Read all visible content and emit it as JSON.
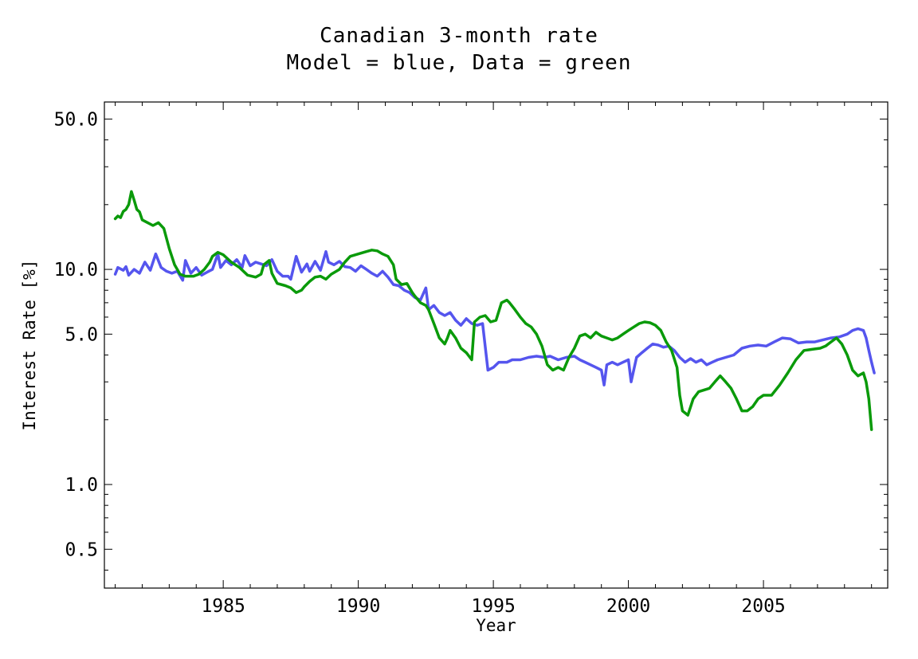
{
  "chart_data": {
    "type": "line",
    "title": "Canadian 3-month rate",
    "subtitle": "Model = blue, Data = green",
    "xlabel": "Year",
    "ylabel": "Interest Rate [%]",
    "xlim": [
      1980.6,
      2009.6
    ],
    "ylim": [
      0.33,
      60
    ],
    "yscale": "log",
    "grid": false,
    "x_ticks": [
      1985,
      1990,
      1995,
      2000,
      2005
    ],
    "x_tick_labels": [
      "1985",
      "1990",
      "1995",
      "2000",
      "2005"
    ],
    "y_ticks": [
      0.5,
      1.0,
      5.0,
      10.0,
      50.0
    ],
    "y_tick_labels": [
      "0.5",
      "1.0",
      "5.0",
      "10.0",
      "50.0"
    ],
    "colors": {
      "model": "#5555ee",
      "data": "#0a9a0a"
    },
    "series": [
      {
        "key": "model",
        "color": "#5555ee",
        "points": [
          [
            1981.0,
            9.5
          ],
          [
            1981.1,
            10.2
          ],
          [
            1981.3,
            9.9
          ],
          [
            1981.4,
            10.3
          ],
          [
            1981.5,
            9.4
          ],
          [
            1981.7,
            10.0
          ],
          [
            1981.9,
            9.6
          ],
          [
            1982.1,
            10.8
          ],
          [
            1982.3,
            9.9
          ],
          [
            1982.5,
            11.8
          ],
          [
            1982.7,
            10.2
          ],
          [
            1982.9,
            9.8
          ],
          [
            1983.1,
            9.6
          ],
          [
            1983.3,
            9.8
          ],
          [
            1983.5,
            8.9
          ],
          [
            1983.6,
            11.0
          ],
          [
            1983.8,
            9.6
          ],
          [
            1984.0,
            10.2
          ],
          [
            1984.2,
            9.4
          ],
          [
            1984.4,
            9.7
          ],
          [
            1984.6,
            10.0
          ],
          [
            1984.8,
            11.8
          ],
          [
            1984.9,
            10.2
          ],
          [
            1985.1,
            11.0
          ],
          [
            1985.3,
            10.5
          ],
          [
            1985.5,
            11.1
          ],
          [
            1985.7,
            10.2
          ],
          [
            1985.8,
            11.6
          ],
          [
            1986.0,
            10.4
          ],
          [
            1986.2,
            10.8
          ],
          [
            1986.4,
            10.6
          ],
          [
            1986.6,
            10.4
          ],
          [
            1986.8,
            11.1
          ],
          [
            1987.0,
            9.8
          ],
          [
            1987.2,
            9.3
          ],
          [
            1987.4,
            9.3
          ],
          [
            1987.5,
            9.0
          ],
          [
            1987.7,
            11.5
          ],
          [
            1987.9,
            9.7
          ],
          [
            1988.1,
            10.6
          ],
          [
            1988.2,
            9.8
          ],
          [
            1988.4,
            10.9
          ],
          [
            1988.6,
            9.9
          ],
          [
            1988.8,
            12.1
          ],
          [
            1988.9,
            10.8
          ],
          [
            1989.1,
            10.5
          ],
          [
            1989.3,
            10.9
          ],
          [
            1989.5,
            10.3
          ],
          [
            1989.7,
            10.2
          ],
          [
            1989.9,
            9.8
          ],
          [
            1990.1,
            10.4
          ],
          [
            1990.3,
            10.0
          ],
          [
            1990.5,
            9.6
          ],
          [
            1990.7,
            9.3
          ],
          [
            1990.9,
            9.8
          ],
          [
            1991.1,
            9.2
          ],
          [
            1991.3,
            8.5
          ],
          [
            1991.5,
            8.4
          ],
          [
            1991.7,
            8.0
          ],
          [
            1991.9,
            7.8
          ],
          [
            1992.1,
            7.4
          ],
          [
            1992.3,
            7.2
          ],
          [
            1992.5,
            8.2
          ],
          [
            1992.6,
            6.5
          ],
          [
            1992.8,
            6.8
          ],
          [
            1993.0,
            6.3
          ],
          [
            1993.2,
            6.1
          ],
          [
            1993.4,
            6.3
          ],
          [
            1993.6,
            5.8
          ],
          [
            1993.8,
            5.5
          ],
          [
            1994.0,
            5.9
          ],
          [
            1994.2,
            5.6
          ],
          [
            1994.4,
            5.5
          ],
          [
            1994.6,
            5.6
          ],
          [
            1994.8,
            3.4
          ],
          [
            1995.0,
            3.5
          ],
          [
            1995.2,
            3.7
          ],
          [
            1995.5,
            3.7
          ],
          [
            1995.7,
            3.8
          ],
          [
            1996.0,
            3.8
          ],
          [
            1996.3,
            3.9
          ],
          [
            1996.6,
            3.95
          ],
          [
            1996.9,
            3.9
          ],
          [
            1997.1,
            3.95
          ],
          [
            1997.4,
            3.8
          ],
          [
            1997.7,
            3.9
          ],
          [
            1998.0,
            3.95
          ],
          [
            1998.2,
            3.8
          ],
          [
            1998.4,
            3.7
          ],
          [
            1998.6,
            3.6
          ],
          [
            1998.8,
            3.5
          ],
          [
            1999.0,
            3.4
          ],
          [
            1999.1,
            2.9
          ],
          [
            1999.2,
            3.6
          ],
          [
            1999.4,
            3.7
          ],
          [
            1999.6,
            3.6
          ],
          [
            1999.8,
            3.7
          ],
          [
            2000.0,
            3.8
          ],
          [
            2000.1,
            3.0
          ],
          [
            2000.3,
            3.9
          ],
          [
            2000.5,
            4.1
          ],
          [
            2000.7,
            4.3
          ],
          [
            2000.9,
            4.5
          ],
          [
            2001.1,
            4.45
          ],
          [
            2001.3,
            4.35
          ],
          [
            2001.5,
            4.4
          ],
          [
            2001.7,
            4.2
          ],
          [
            2001.9,
            3.9
          ],
          [
            2002.1,
            3.7
          ],
          [
            2002.3,
            3.85
          ],
          [
            2002.5,
            3.7
          ],
          [
            2002.7,
            3.8
          ],
          [
            2002.9,
            3.6
          ],
          [
            2003.1,
            3.7
          ],
          [
            2003.3,
            3.8
          ],
          [
            2003.6,
            3.9
          ],
          [
            2003.9,
            4.0
          ],
          [
            2004.2,
            4.3
          ],
          [
            2004.5,
            4.4
          ],
          [
            2004.8,
            4.45
          ],
          [
            2005.1,
            4.4
          ],
          [
            2005.4,
            4.6
          ],
          [
            2005.7,
            4.8
          ],
          [
            2006.0,
            4.75
          ],
          [
            2006.3,
            4.55
          ],
          [
            2006.6,
            4.6
          ],
          [
            2006.9,
            4.6
          ],
          [
            2007.2,
            4.7
          ],
          [
            2007.5,
            4.8
          ],
          [
            2007.8,
            4.85
          ],
          [
            2008.1,
            5.0
          ],
          [
            2008.3,
            5.2
          ],
          [
            2008.5,
            5.3
          ],
          [
            2008.7,
            5.2
          ],
          [
            2008.8,
            4.8
          ],
          [
            2008.9,
            4.2
          ],
          [
            2009.0,
            3.7
          ],
          [
            2009.1,
            3.3
          ]
        ]
      },
      {
        "key": "data",
        "color": "#0a9a0a",
        "points": [
          [
            1981.0,
            17.2
          ],
          [
            1981.1,
            17.7
          ],
          [
            1981.2,
            17.4
          ],
          [
            1981.3,
            18.6
          ],
          [
            1981.4,
            19.0
          ],
          [
            1981.5,
            20.0
          ],
          [
            1981.6,
            23.0
          ],
          [
            1981.7,
            21.0
          ],
          [
            1981.8,
            19.0
          ],
          [
            1981.9,
            18.5
          ],
          [
            1982.0,
            17.0
          ],
          [
            1982.2,
            16.5
          ],
          [
            1982.4,
            16.0
          ],
          [
            1982.6,
            16.5
          ],
          [
            1982.8,
            15.5
          ],
          [
            1983.0,
            12.5
          ],
          [
            1983.2,
            10.5
          ],
          [
            1983.4,
            9.5
          ],
          [
            1983.6,
            9.3
          ],
          [
            1983.9,
            9.3
          ],
          [
            1984.1,
            9.5
          ],
          [
            1984.3,
            10.0
          ],
          [
            1984.5,
            10.8
          ],
          [
            1984.6,
            11.5
          ],
          [
            1984.8,
            12.0
          ],
          [
            1985.0,
            11.7
          ],
          [
            1985.3,
            10.8
          ],
          [
            1985.6,
            10.2
          ],
          [
            1985.9,
            9.4
          ],
          [
            1986.2,
            9.2
          ],
          [
            1986.4,
            9.5
          ],
          [
            1986.5,
            10.5
          ],
          [
            1986.7,
            11.0
          ],
          [
            1986.8,
            9.6
          ],
          [
            1987.0,
            8.6
          ],
          [
            1987.3,
            8.4
          ],
          [
            1987.5,
            8.2
          ],
          [
            1987.7,
            7.8
          ],
          [
            1987.9,
            8.0
          ],
          [
            1988.0,
            8.3
          ],
          [
            1988.2,
            8.8
          ],
          [
            1988.4,
            9.2
          ],
          [
            1988.6,
            9.3
          ],
          [
            1988.8,
            9.0
          ],
          [
            1989.0,
            9.5
          ],
          [
            1989.3,
            10.0
          ],
          [
            1989.5,
            10.8
          ],
          [
            1989.7,
            11.5
          ],
          [
            1990.0,
            11.8
          ],
          [
            1990.3,
            12.1
          ],
          [
            1990.5,
            12.3
          ],
          [
            1990.7,
            12.2
          ],
          [
            1990.9,
            11.8
          ],
          [
            1991.1,
            11.5
          ],
          [
            1991.3,
            10.5
          ],
          [
            1991.4,
            9.0
          ],
          [
            1991.6,
            8.5
          ],
          [
            1991.8,
            8.6
          ],
          [
            1992.0,
            7.8
          ],
          [
            1992.1,
            7.5
          ],
          [
            1992.3,
            7.0
          ],
          [
            1992.5,
            6.8
          ],
          [
            1992.6,
            6.5
          ],
          [
            1992.8,
            5.6
          ],
          [
            1993.0,
            4.8
          ],
          [
            1993.2,
            4.5
          ],
          [
            1993.3,
            4.8
          ],
          [
            1993.4,
            5.2
          ],
          [
            1993.6,
            4.8
          ],
          [
            1993.8,
            4.3
          ],
          [
            1994.0,
            4.1
          ],
          [
            1994.2,
            3.8
          ],
          [
            1994.3,
            5.7
          ],
          [
            1994.5,
            6.0
          ],
          [
            1994.7,
            6.1
          ],
          [
            1994.9,
            5.7
          ],
          [
            1995.1,
            5.8
          ],
          [
            1995.3,
            7.0
          ],
          [
            1995.5,
            7.2
          ],
          [
            1995.6,
            7.0
          ],
          [
            1995.8,
            6.5
          ],
          [
            1996.0,
            6.0
          ],
          [
            1996.2,
            5.6
          ],
          [
            1996.4,
            5.4
          ],
          [
            1996.6,
            5.0
          ],
          [
            1996.8,
            4.4
          ],
          [
            1997.0,
            3.6
          ],
          [
            1997.2,
            3.4
          ],
          [
            1997.4,
            3.5
          ],
          [
            1997.6,
            3.4
          ],
          [
            1997.8,
            3.9
          ],
          [
            1998.0,
            4.3
          ],
          [
            1998.2,
            4.9
          ],
          [
            1998.4,
            5.0
          ],
          [
            1998.6,
            4.8
          ],
          [
            1998.8,
            5.1
          ],
          [
            1999.0,
            4.9
          ],
          [
            1999.2,
            4.8
          ],
          [
            1999.4,
            4.7
          ],
          [
            1999.6,
            4.8
          ],
          [
            1999.8,
            5.0
          ],
          [
            2000.0,
            5.2
          ],
          [
            2000.2,
            5.4
          ],
          [
            2000.4,
            5.6
          ],
          [
            2000.6,
            5.7
          ],
          [
            2000.8,
            5.65
          ],
          [
            2001.0,
            5.5
          ],
          [
            2001.2,
            5.2
          ],
          [
            2001.4,
            4.6
          ],
          [
            2001.6,
            4.2
          ],
          [
            2001.8,
            3.5
          ],
          [
            2001.9,
            2.6
          ],
          [
            2002.0,
            2.2
          ],
          [
            2002.2,
            2.1
          ],
          [
            2002.4,
            2.5
          ],
          [
            2002.6,
            2.7
          ],
          [
            2002.8,
            2.75
          ],
          [
            2003.0,
            2.8
          ],
          [
            2003.2,
            3.0
          ],
          [
            2003.4,
            3.2
          ],
          [
            2003.6,
            3.0
          ],
          [
            2003.8,
            2.8
          ],
          [
            2004.0,
            2.5
          ],
          [
            2004.2,
            2.2
          ],
          [
            2004.4,
            2.2
          ],
          [
            2004.6,
            2.3
          ],
          [
            2004.8,
            2.5
          ],
          [
            2005.0,
            2.6
          ],
          [
            2005.3,
            2.6
          ],
          [
            2005.6,
            2.9
          ],
          [
            2005.9,
            3.3
          ],
          [
            2006.2,
            3.8
          ],
          [
            2006.5,
            4.2
          ],
          [
            2006.8,
            4.25
          ],
          [
            2007.1,
            4.3
          ],
          [
            2007.3,
            4.4
          ],
          [
            2007.5,
            4.6
          ],
          [
            2007.7,
            4.8
          ],
          [
            2007.9,
            4.5
          ],
          [
            2008.1,
            4.0
          ],
          [
            2008.3,
            3.4
          ],
          [
            2008.5,
            3.2
          ],
          [
            2008.7,
            3.3
          ],
          [
            2008.8,
            3.0
          ],
          [
            2008.9,
            2.5
          ],
          [
            2009.0,
            1.8
          ]
        ]
      }
    ]
  }
}
